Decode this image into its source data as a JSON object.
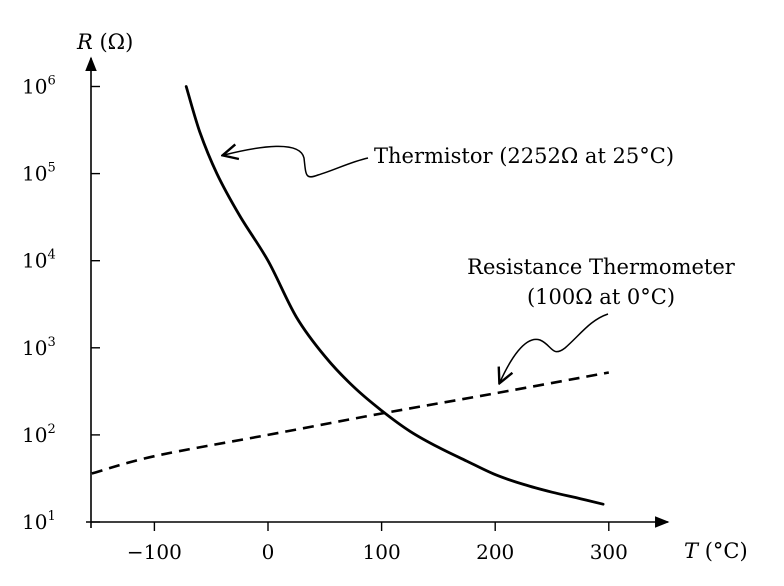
{
  "chart_data": {
    "type": "line",
    "title": "",
    "xlabel": "T (°C)",
    "ylabel": "R (Ω)",
    "x_scale": "linear",
    "y_scale": "log",
    "xlim": [
      -160,
      300
    ],
    "ylim": [
      10,
      1000000
    ],
    "x_ticks": [
      -100,
      0,
      100,
      200,
      300
    ],
    "x_tick_labels": [
      "−100",
      "0",
      "100",
      "200",
      "300"
    ],
    "y_ticks": [
      10,
      100,
      1000,
      10000,
      100000,
      1000000
    ],
    "y_tick_labels": [
      {
        "base": "10",
        "exp": "1"
      },
      {
        "base": "10",
        "exp": "2"
      },
      {
        "base": "10",
        "exp": "3"
      },
      {
        "base": "10",
        "exp": "4"
      },
      {
        "base": "10",
        "exp": "5"
      },
      {
        "base": "10",
        "exp": "6"
      }
    ],
    "grid": false,
    "series": [
      {
        "name": "Thermistor (2252Ω at 25°C)",
        "style": "solid",
        "color": "#000000",
        "points": [
          [
            -72,
            1000000
          ],
          [
            -60,
            300000
          ],
          [
            -45,
            100000
          ],
          [
            -25,
            33000
          ],
          [
            0,
            10000
          ],
          [
            25,
            2252
          ],
          [
            50,
            800
          ],
          [
            75,
            360
          ],
          [
            100,
            190
          ],
          [
            125,
            110
          ],
          [
            150,
            72
          ],
          [
            175,
            50
          ],
          [
            200,
            35
          ],
          [
            225,
            27
          ],
          [
            250,
            22
          ],
          [
            275,
            18.5
          ],
          [
            295,
            16
          ]
        ]
      },
      {
        "name": "Resistance Thermometer (100Ω at 0°C)",
        "style": "dashed",
        "color": "#000000",
        "points": [
          [
            -155,
            36
          ],
          [
            -100,
            57
          ],
          [
            0,
            100
          ],
          [
            100,
            176
          ],
          [
            200,
            300
          ],
          [
            300,
            520
          ]
        ]
      }
    ],
    "annotations": [
      {
        "line1": "Thermistor (2252Ω at 25°C)"
      },
      {
        "line1": "Resistance Thermometer",
        "line2": "(100Ω at 0°C)"
      }
    ]
  }
}
